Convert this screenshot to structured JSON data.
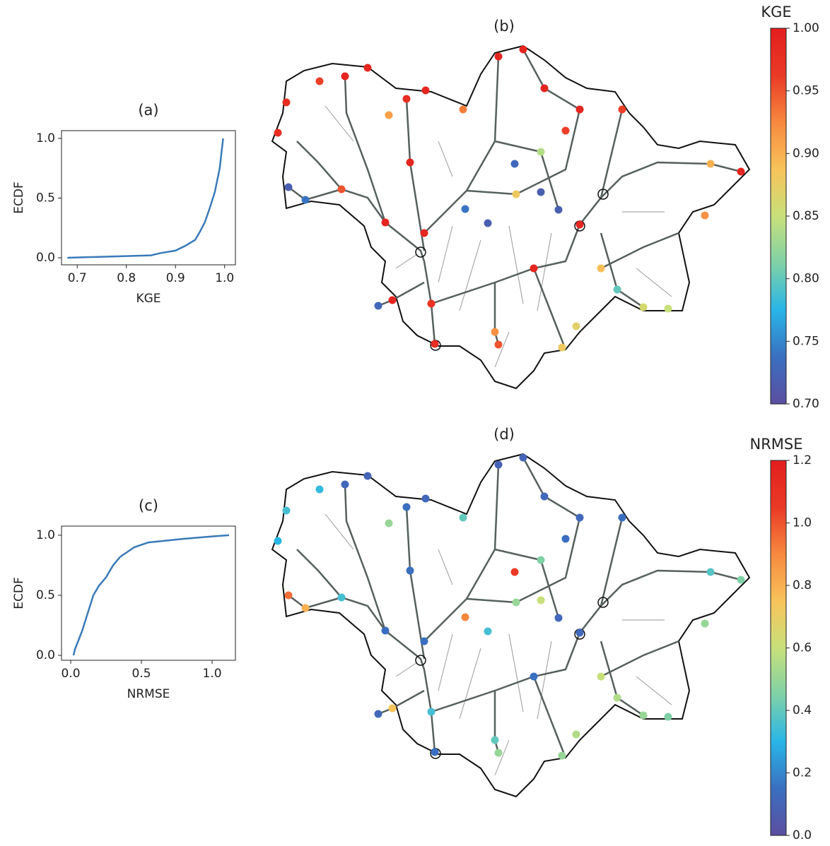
{
  "chart_data": [
    {
      "type": "line",
      "title": "(a)",
      "xlabel": "KGE",
      "ylabel": "ECDF",
      "color": "#3a7ab8",
      "x": [
        0.68,
        0.85,
        0.87,
        0.9,
        0.92,
        0.94,
        0.95,
        0.96,
        0.97,
        0.98,
        0.99,
        0.997
      ],
      "values": [
        0.0,
        0.02,
        0.04,
        0.06,
        0.1,
        0.15,
        0.22,
        0.3,
        0.42,
        0.55,
        0.75,
        1.0
      ],
      "xlim": [
        0.668,
        1.022
      ],
      "ylim": [
        -0.059,
        1.065
      ],
      "xticks": [
        0.7,
        0.8,
        0.9,
        {
          "value": 1,
          "label": "1.0"
        }
      ],
      "yticks": [
        {
          "value": 0,
          "label": "0.0"
        },
        0.5,
        {
          "value": 1,
          "label": "1.0"
        }
      ]
    },
    {
      "type": "map",
      "title": "(b)",
      "colorbar_label": "KGE",
      "clim": [
        0.7,
        1.0
      ],
      "cticks": [
        {
          "value": 0.7,
          "label": "0.70"
        },
        0.75,
        {
          "value": 0.8,
          "label": "0.80"
        },
        0.85,
        {
          "value": 0.9,
          "label": "0.90"
        },
        0.95,
        {
          "value": 1,
          "label": "1.00"
        }
      ],
      "colormap": [
        "#5b4ea0",
        "#3a6fc0",
        "#29b6e8",
        "#7fd1a6",
        "#c8e07a",
        "#f8c35a",
        "#f7893f",
        "#ea3a26",
        "#e31e1e"
      ],
      "values": [
        0.99,
        0.99,
        0.96,
        0.98,
        0.98,
        0.72,
        0.74,
        0.95,
        0.91,
        0.98,
        0.99,
        0.93,
        0.99,
        0.99,
        0.99,
        0.99,
        0.96,
        0.96,
        0.84,
        0.73,
        0.88,
        0.72,
        0.74,
        0.72,
        0.72,
        0.89,
        0.8,
        0.86,
        0.85,
        0.9,
        0.99,
        0.92,
        0.73,
        0.99,
        0.97,
        0.98,
        0.92,
        0.95,
        0.88,
        0.87,
        0.99,
        0.99,
        0.99,
        0.99,
        0.99
      ]
    },
    {
      "type": "line",
      "title": "(c)",
      "xlabel": "NRMSE",
      "ylabel": "ECDF",
      "color": "#3a7ab8",
      "x": [
        0.02,
        0.03,
        0.08,
        0.12,
        0.16,
        0.2,
        0.25,
        0.3,
        0.35,
        0.45,
        0.55,
        0.8,
        1.0,
        1.12
      ],
      "values": [
        0.0,
        0.05,
        0.2,
        0.35,
        0.5,
        0.58,
        0.65,
        0.75,
        0.82,
        0.9,
        0.94,
        0.97,
        0.99,
        1.0
      ],
      "xlim": [
        -0.065,
        1.165
      ],
      "ylim": [
        -0.041,
        1.076
      ],
      "xticks": [
        {
          "value": 0,
          "label": "0.0"
        },
        0.5,
        {
          "value": 1,
          "label": "1.0"
        }
      ],
      "yticks": [
        {
          "value": 0,
          "label": "0.0"
        },
        0.5,
        {
          "value": 1,
          "label": "1.0"
        }
      ]
    },
    {
      "type": "map",
      "title": "(d)",
      "colorbar_label": "NRMSE",
      "clim": [
        0,
        1.2
      ],
      "cticks": [
        {
          "value": 0,
          "label": "0.0"
        },
        0.2,
        0.4,
        0.6,
        0.8,
        {
          "value": 1,
          "label": "1.0"
        },
        1.2
      ],
      "colormap": [
        "#5b4ea0",
        "#3a6fc0",
        "#29b6e8",
        "#7fd1a6",
        "#c8e07a",
        "#f8c35a",
        "#f7893f",
        "#ea3a26",
        "#e31e1e"
      ],
      "values": [
        0.12,
        0.1,
        0.32,
        0.35,
        0.3,
        0.95,
        0.8,
        0.35,
        0.5,
        0.15,
        0.12,
        0.4,
        0.1,
        0.1,
        0.12,
        0.12,
        0.15,
        0.15,
        0.45,
        1.05,
        0.5,
        0.6,
        0.9,
        0.35,
        0.12,
        0.6,
        0.55,
        0.5,
        0.45,
        0.38,
        0.45,
        0.5,
        0.12,
        0.75,
        0.35,
        0.15,
        0.4,
        0.5,
        0.5,
        0.55,
        0.15,
        0.12,
        0.15,
        0.15,
        0.15
      ]
    }
  ]
}
